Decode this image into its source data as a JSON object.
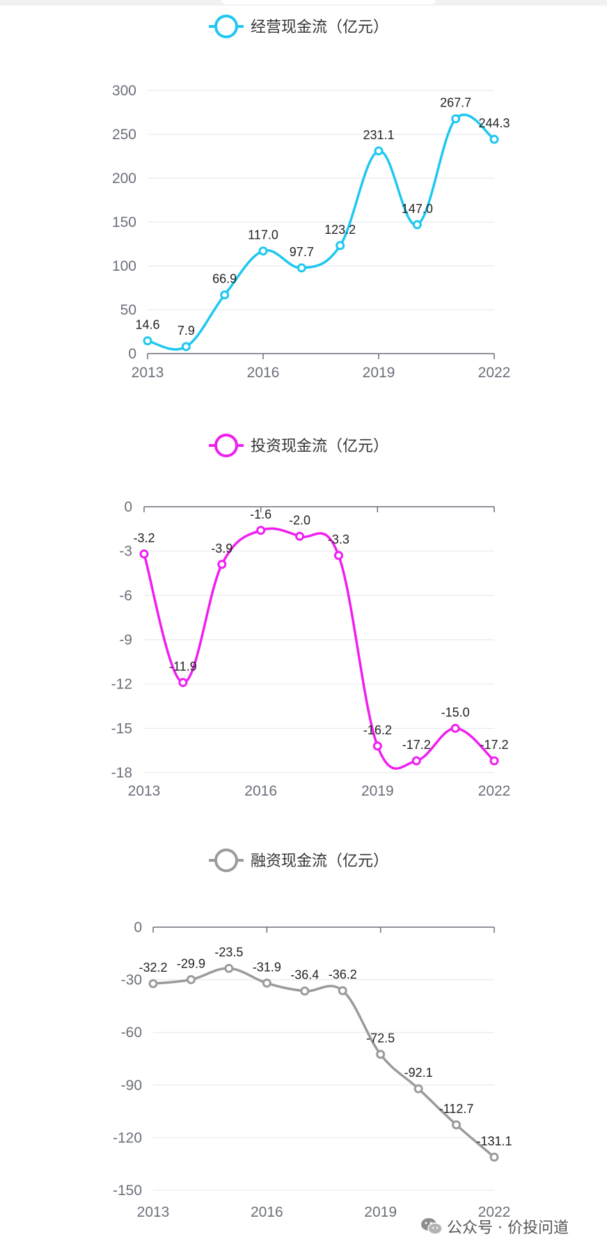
{
  "chart_data": [
    {
      "type": "line",
      "series": [
        {
          "name": "经营现金流（亿元）",
          "values": [
            14.6,
            7.9,
            66.9,
            117.0,
            97.7,
            123.2,
            231.1,
            147.0,
            267.7,
            244.3
          ]
        }
      ],
      "x": [
        2013,
        2014,
        2015,
        2016,
        2017,
        2018,
        2019,
        2020,
        2021,
        2022
      ],
      "xticks": [
        "2013",
        "2016",
        "2019",
        "2022"
      ],
      "yticks": [
        "0",
        "50",
        "100",
        "150",
        "200",
        "250",
        "300"
      ],
      "labels": [
        "14.6",
        "7.9",
        "66.9",
        "117.0",
        "97.7",
        "123.2",
        "231.1",
        "147.0",
        "267.7",
        "244.3"
      ],
      "ylim": [
        0,
        300
      ],
      "color": "#1ec8f0",
      "legend_position": "top-center",
      "grid": true
    },
    {
      "type": "line",
      "series": [
        {
          "name": "投资现金流（亿元）",
          "values": [
            -3.2,
            -11.9,
            -3.9,
            -1.6,
            -2.0,
            -3.3,
            -16.2,
            -17.2,
            -15.0,
            -17.2
          ]
        }
      ],
      "x": [
        2013,
        2014,
        2015,
        2016,
        2017,
        2018,
        2019,
        2020,
        2021,
        2022
      ],
      "xticks": [
        "2013",
        "2016",
        "2019",
        "2022"
      ],
      "yticks": [
        "0",
        "-3",
        "-6",
        "-9",
        "-12",
        "-15",
        "-18"
      ],
      "labels": [
        "-3.2",
        "-11.9",
        "-3.9",
        "-1.6",
        "-2.0",
        "-3.3",
        "-16.2",
        "-17.2",
        "-15.0",
        "-17.2"
      ],
      "ylim": [
        -18,
        0
      ],
      "color": "#f01ef0",
      "legend_position": "top-center",
      "grid": true
    },
    {
      "type": "line",
      "series": [
        {
          "name": "融资现金流（亿元）",
          "values": [
            -32.2,
            -29.9,
            -23.5,
            -31.9,
            -36.4,
            -36.2,
            -72.5,
            -92.1,
            -112.7,
            -131.1
          ]
        }
      ],
      "x": [
        2013,
        2014,
        2015,
        2016,
        2017,
        2018,
        2019,
        2020,
        2021,
        2022
      ],
      "xticks": [
        "2013",
        "2016",
        "2019",
        "2022"
      ],
      "yticks": [
        "0",
        "-30",
        "-60",
        "-90",
        "-120",
        "-150"
      ],
      "labels": [
        "-32.2",
        "-29.9",
        "-23.5",
        "-31.9",
        "-36.4",
        "-36.2",
        "-72.5",
        "-92.1",
        "-112.7",
        "-131.1"
      ],
      "ylim": [
        -150,
        0
      ],
      "color": "#9b9b9b",
      "legend_position": "top-center",
      "grid": true
    }
  ],
  "watermark": {
    "text": "公众号 · 价投问道",
    "icon": "wechat-icon"
  }
}
